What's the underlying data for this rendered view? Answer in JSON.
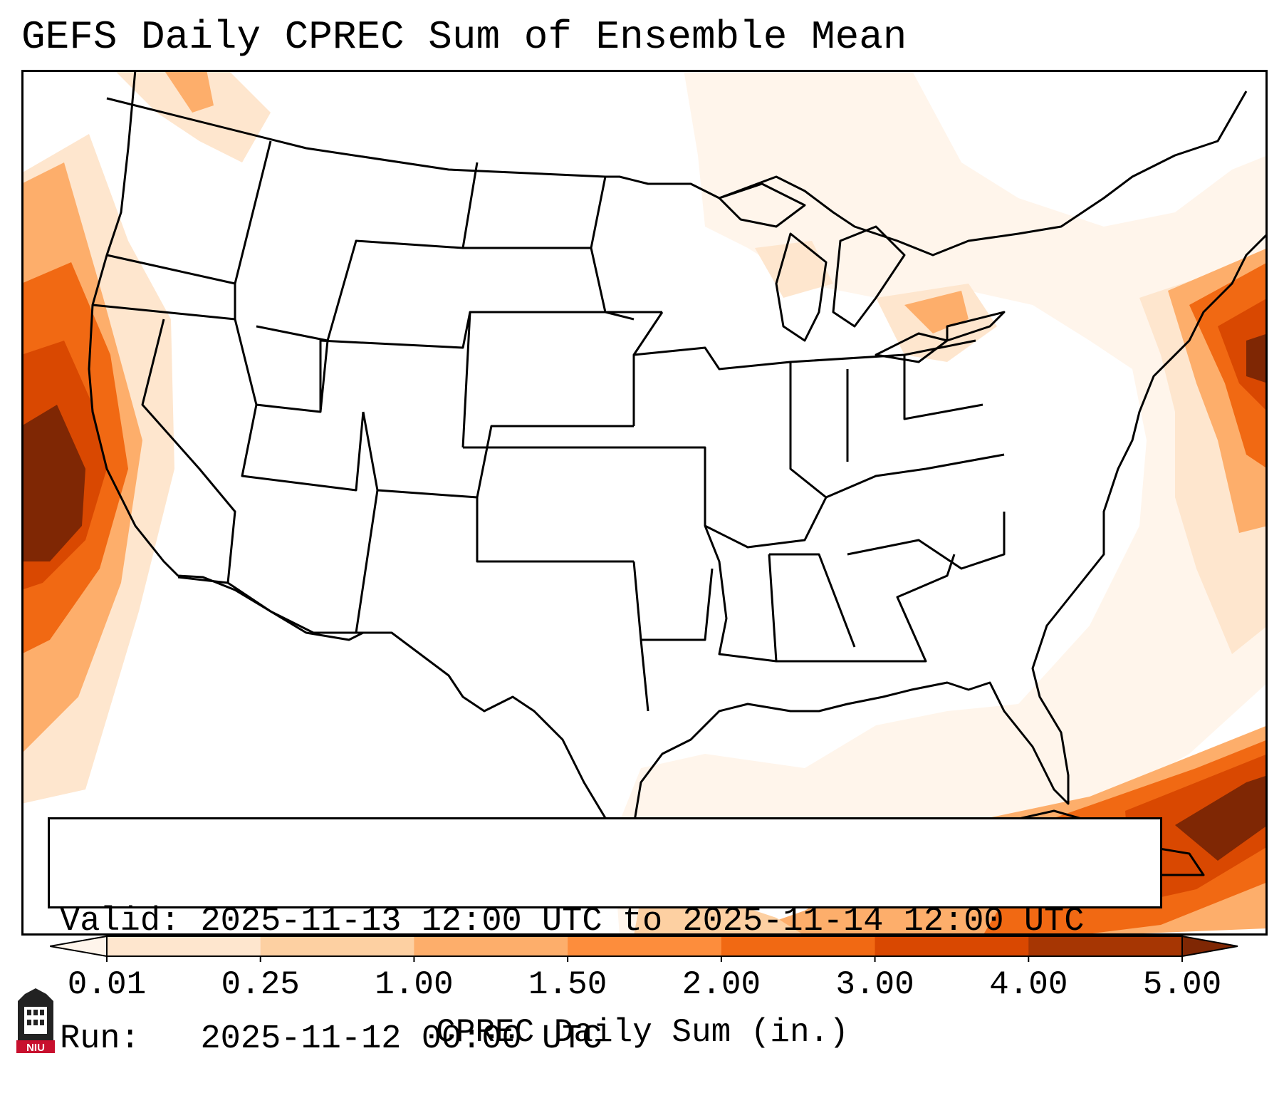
{
  "title": "GEFS Daily CPREC Sum of Ensemble Mean",
  "info": {
    "valid_label": "Valid:",
    "valid_value": "2025-11-13 12:00 UTC to 2025-11-14 12:00 UTC",
    "run_label": "Run:",
    "run_value": "2025-11-12 00:00 UTC"
  },
  "colorbar": {
    "label": "CPREC Daily Sum (in.)",
    "ticks": [
      "0.01",
      "0.25",
      "1.00",
      "1.50",
      "2.00",
      "3.00",
      "4.00",
      "5.00"
    ],
    "colors": [
      "#fff5eb",
      "#fee6ce",
      "#fdd0a2",
      "#fdae6b",
      "#fd8d3c",
      "#f16913",
      "#d94801",
      "#a63603",
      "#7f2704"
    ]
  },
  "logo": {
    "text": "NIU",
    "color": "#c8102e"
  }
}
